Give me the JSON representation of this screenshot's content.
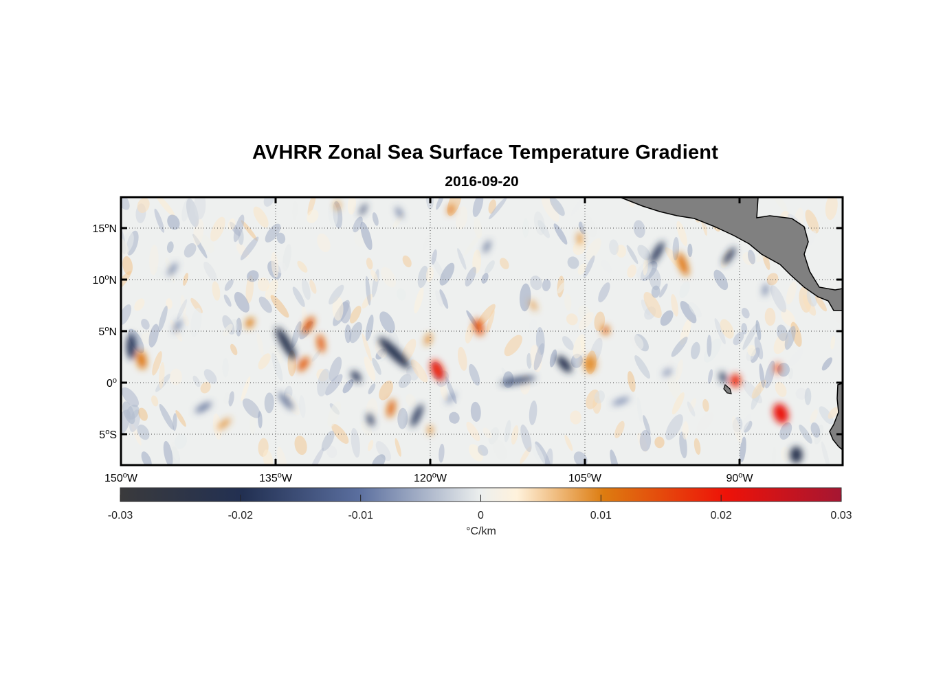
{
  "title": "AVHRR Zonal Sea Surface Temperature Gradient",
  "date": "2016-09-20",
  "map": {
    "lon_range": [
      -150,
      -80
    ],
    "lat_range": [
      -8,
      18
    ],
    "grid": true,
    "land_color": "#808080",
    "lon_ticks": [
      {
        "value": -150,
        "num": "150",
        "hem": "W"
      },
      {
        "value": -135,
        "num": "135",
        "hem": "W"
      },
      {
        "value": -120,
        "num": "120",
        "hem": "W"
      },
      {
        "value": -105,
        "num": "105",
        "hem": "W"
      },
      {
        "value": -90,
        "num": "90",
        "hem": "W"
      }
    ],
    "lat_ticks": [
      {
        "value": 15,
        "num": "15",
        "hem": "N"
      },
      {
        "value": 10,
        "num": "10",
        "hem": "N"
      },
      {
        "value": 5,
        "num": "5",
        "hem": "N"
      },
      {
        "value": 0,
        "num": "0",
        "hem": ""
      },
      {
        "value": -5,
        "num": "5",
        "hem": "S"
      }
    ]
  },
  "colorbar": {
    "range": [
      -0.03,
      0.03
    ],
    "ticks": [
      "-0.03",
      "-0.02",
      "-0.01",
      "0",
      "0.01",
      "0.02",
      "0.03"
    ],
    "units": "°C/km",
    "colors": [
      "#3a3a3c",
      "#223052",
      "#5a6e9e",
      "#ecefee",
      "#fff2dc",
      "#dd7c10",
      "#ee1208",
      "#a51632"
    ]
  },
  "chart_data": {
    "type": "heatmap",
    "title": "AVHRR Zonal Sea Surface Temperature Gradient",
    "subtitle": "2016-09-20",
    "xlabel": "",
    "ylabel": "",
    "xlim": [
      -150,
      -80
    ],
    "ylim": [
      -8,
      18
    ],
    "clim": [
      -0.03,
      0.03
    ],
    "colorbar_label": "°C/km",
    "features": [
      {
        "lon": -149.0,
        "lat": 3.5,
        "v": -0.019,
        "w": 0.9,
        "h": 2.5,
        "rot": 0
      },
      {
        "lon": -148.0,
        "lat": 2.2,
        "v": 0.011,
        "w": 0.9,
        "h": 1.8,
        "rot": -10
      },
      {
        "lon": -137.5,
        "lat": 5.8,
        "v": 0.01,
        "w": 0.7,
        "h": 1.1,
        "rot": 30
      },
      {
        "lon": -134.0,
        "lat": 3.8,
        "v": -0.022,
        "w": 0.9,
        "h": 3.6,
        "rot": -30
      },
      {
        "lon": -131.8,
        "lat": 5.6,
        "v": 0.013,
        "w": 0.8,
        "h": 1.8,
        "rot": 30
      },
      {
        "lon": -130.6,
        "lat": 3.8,
        "v": 0.013,
        "w": 0.7,
        "h": 1.8,
        "rot": -10
      },
      {
        "lon": -132.3,
        "lat": 1.8,
        "v": 0.013,
        "w": 0.8,
        "h": 1.6,
        "rot": 35
      },
      {
        "lon": -123.5,
        "lat": 2.9,
        "v": -0.021,
        "w": 1.0,
        "h": 4.2,
        "rot": -45
      },
      {
        "lon": -127.2,
        "lat": 0.6,
        "v": -0.019,
        "w": 0.7,
        "h": 1.3,
        "rot": -40
      },
      {
        "lon": -123.8,
        "lat": -2.5,
        "v": 0.012,
        "w": 0.7,
        "h": 1.8,
        "rot": 12
      },
      {
        "lon": -125.8,
        "lat": -3.6,
        "v": -0.017,
        "w": 0.6,
        "h": 1.3,
        "rot": -20
      },
      {
        "lon": -121.3,
        "lat": -3.2,
        "v": -0.018,
        "w": 0.7,
        "h": 2.4,
        "rot": 25
      },
      {
        "lon": -119.3,
        "lat": 1.2,
        "v": 0.019,
        "w": 1.1,
        "h": 2.1,
        "rot": -25
      },
      {
        "lon": -120.2,
        "lat": 4.2,
        "v": 0.01,
        "w": 0.5,
        "h": 1.2,
        "rot": 20
      },
      {
        "lon": -115.3,
        "lat": 5.4,
        "v": 0.014,
        "w": 0.9,
        "h": 1.7,
        "rot": -15
      },
      {
        "lon": -120.0,
        "lat": -4.6,
        "v": 0.011,
        "w": 0.4,
        "h": 0.9,
        "rot": 0
      },
      {
        "lon": -111.5,
        "lat": 0.2,
        "v": -0.016,
        "w": 0.6,
        "h": 3.5,
        "rot": 80
      },
      {
        "lon": -107.0,
        "lat": 1.8,
        "v": -0.021,
        "w": 0.9,
        "h": 2.0,
        "rot": -40
      },
      {
        "lon": -104.5,
        "lat": 1.8,
        "v": 0.009,
        "w": 1.2,
        "h": 1.6,
        "rot": 0
      },
      {
        "lon": -103.0,
        "lat": 5.1,
        "v": 0.012,
        "w": 0.7,
        "h": 0.9,
        "rot": 0
      },
      {
        "lon": -105.5,
        "lat": 14.0,
        "v": 0.009,
        "w": 0.5,
        "h": 1.2,
        "rot": 0
      },
      {
        "lon": -98.0,
        "lat": 12.6,
        "v": -0.019,
        "w": 0.7,
        "h": 2.5,
        "rot": 30
      },
      {
        "lon": -95.5,
        "lat": 11.5,
        "v": 0.011,
        "w": 0.8,
        "h": 2.4,
        "rot": -20
      },
      {
        "lon": -91.0,
        "lat": 12.3,
        "v": -0.019,
        "w": 0.6,
        "h": 2.0,
        "rot": 35
      },
      {
        "lon": -90.4,
        "lat": 0.2,
        "v": 0.018,
        "w": 1.0,
        "h": 1.3,
        "rot": 0
      },
      {
        "lon": -91.6,
        "lat": 0.5,
        "v": -0.018,
        "w": 0.6,
        "h": 1.2,
        "rot": -20
      },
      {
        "lon": -86.0,
        "lat": -3.0,
        "v": 0.021,
        "w": 1.4,
        "h": 2.0,
        "rot": -20
      },
      {
        "lon": -86.3,
        "lat": 1.4,
        "v": 0.017,
        "w": 0.5,
        "h": 1.1,
        "rot": 0
      },
      {
        "lon": -84.5,
        "lat": -7.0,
        "v": -0.022,
        "w": 1.2,
        "h": 1.6,
        "rot": 0
      },
      {
        "lon": -142.0,
        "lat": -2.4,
        "v": -0.012,
        "w": 0.5,
        "h": 1.8,
        "rot": 60
      },
      {
        "lon": -134.0,
        "lat": -1.8,
        "v": -0.013,
        "w": 0.5,
        "h": 2.2,
        "rot": -40
      },
      {
        "lon": -126.5,
        "lat": 16.8,
        "v": -0.016,
        "w": 0.4,
        "h": 1.3,
        "rot": 30
      },
      {
        "lon": -123.0,
        "lat": 16.5,
        "v": -0.012,
        "w": 0.4,
        "h": 1.2,
        "rot": -30
      },
      {
        "lon": -118.0,
        "lat": 16.8,
        "v": 0.012,
        "w": 0.5,
        "h": 1.0,
        "rot": 20
      },
      {
        "lon": -129.0,
        "lat": 17.2,
        "v": 0.01,
        "w": 0.4,
        "h": 0.8,
        "rot": 0
      },
      {
        "lon": -145.0,
        "lat": 11.0,
        "v": -0.011,
        "w": 0.4,
        "h": 1.5,
        "rot": 35
      },
      {
        "lon": -140.0,
        "lat": -4.0,
        "v": 0.009,
        "w": 0.5,
        "h": 1.6,
        "rot": 50
      },
      {
        "lon": -114.5,
        "lat": 13.2,
        "v": -0.013,
        "w": 0.4,
        "h": 1.3,
        "rot": 25
      },
      {
        "lon": -101.5,
        "lat": -1.8,
        "v": -0.01,
        "w": 0.4,
        "h": 1.8,
        "rot": 70
      },
      {
        "lon": -97.0,
        "lat": 1.0,
        "v": -0.01,
        "w": 0.4,
        "h": 1.0,
        "rot": 60
      },
      {
        "lon": -87.5,
        "lat": 9.0,
        "v": -0.011,
        "w": 0.4,
        "h": 1.2,
        "rot": 10
      },
      {
        "lon": -144.5,
        "lat": 5.5,
        "v": -0.011,
        "w": 0.4,
        "h": 1.4,
        "rot": 30
      },
      {
        "lon": -110.0,
        "lat": 7.5,
        "v": 0.009,
        "w": 0.4,
        "h": 1.2,
        "rot": -30
      },
      {
        "lon": -118.0,
        "lat": -1.5,
        "v": -0.009,
        "w": 0.4,
        "h": 1.3,
        "rot": 40
      }
    ]
  }
}
